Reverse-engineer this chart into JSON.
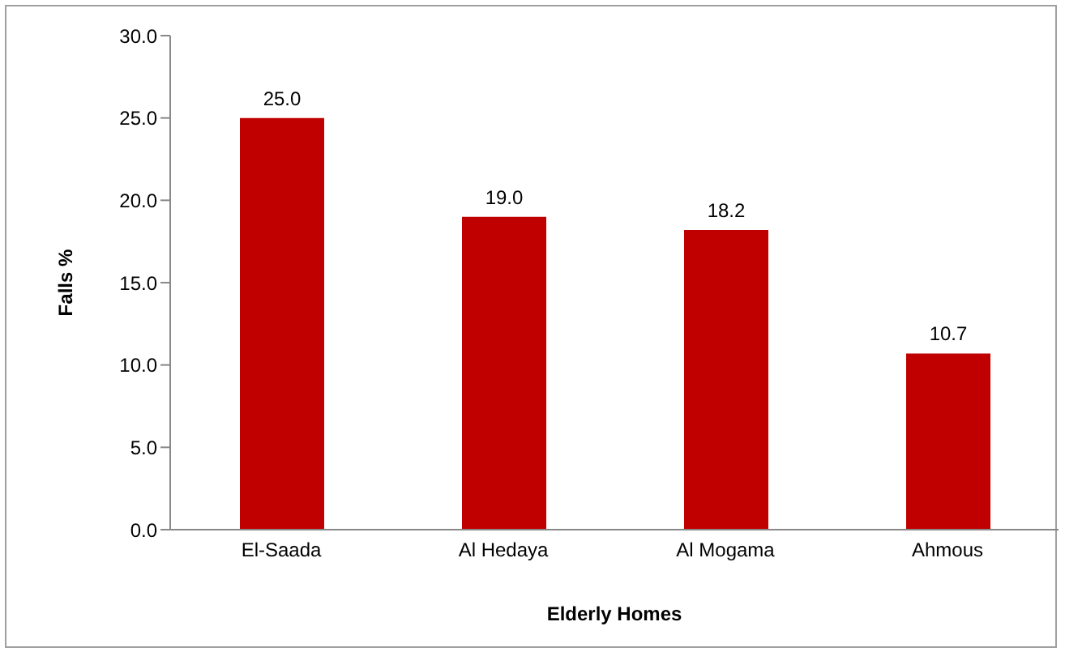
{
  "chart_data": {
    "type": "bar",
    "xlabel": "Elderly Homes",
    "ylabel": "Falls %",
    "categories": [
      "El-Saada",
      "Al Hedaya",
      "Al Mogama",
      "Ahmous"
    ],
    "values": [
      25.0,
      19.0,
      18.2,
      10.7
    ],
    "color": "#c00000",
    "ylim": [
      0,
      30
    ],
    "yticks": [
      {
        "value": 0,
        "label": "0.0"
      },
      {
        "value": 5,
        "label": "5.0"
      },
      {
        "value": 10,
        "label": "10.0"
      },
      {
        "value": 15,
        "label": "15.0"
      },
      {
        "value": 20,
        "label": "20.0"
      },
      {
        "value": 25,
        "label": "25.0"
      },
      {
        "value": 30,
        "label": "30.0"
      }
    ],
    "value_labels": [
      "25.0",
      "19.0",
      "18.2",
      "10.7"
    ],
    "grid": false,
    "legend": false
  }
}
